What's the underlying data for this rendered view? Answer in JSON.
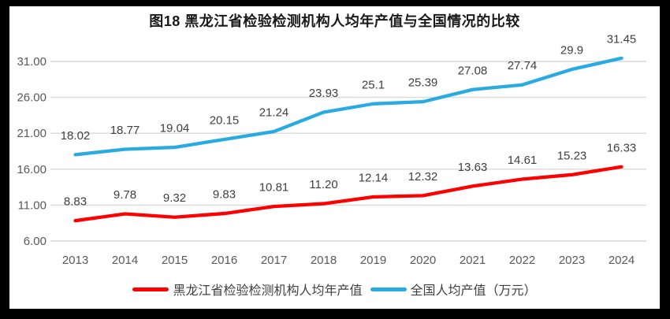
{
  "frame": {
    "border_color": "#000000",
    "background": "#ffffff"
  },
  "title": "图18 黑龙江省检验检测机构人均年产值与全国情况的比较",
  "chart_data": {
    "type": "line",
    "title": "图18 黑龙江省检验检测机构人均年产值与全国情况的比较",
    "xlabel": "",
    "ylabel": "",
    "categories": [
      "2013",
      "2014",
      "2015",
      "2016",
      "2017",
      "2018",
      "2019",
      "2020",
      "2021",
      "2022",
      "2023",
      "2024"
    ],
    "series": [
      {
        "name": "黑龙江省检验检测机构人均年产值",
        "color": "#FE0000",
        "values": [
          8.83,
          9.78,
          9.32,
          9.83,
          10.81,
          11.2,
          12.14,
          12.32,
          13.63,
          14.61,
          15.23,
          16.33
        ],
        "labels": [
          "8.83",
          "9.78",
          "9.32",
          "9.83",
          "10.81",
          "11.20",
          "12.14",
          "12.32",
          "13.63",
          "14.61",
          "15.23",
          "16.33"
        ]
      },
      {
        "name": "全国人均产值（万元）",
        "color": "#29ABE2",
        "values": [
          18.02,
          18.77,
          19.04,
          20.15,
          21.24,
          23.93,
          25.1,
          25.39,
          27.08,
          27.74,
          29.9,
          31.45
        ],
        "labels": [
          "18.02",
          "18.77",
          "19.04",
          "20.15",
          "21.24",
          "23.93",
          "25.1",
          "25.39",
          "27.08",
          "27.74",
          "29.9",
          "31.45"
        ]
      }
    ],
    "ylim": [
      6,
      31
    ],
    "y_ticks": [
      6,
      11,
      16,
      21,
      26,
      31
    ],
    "y_tick_labels": [
      "6.00",
      "11.00",
      "16.00",
      "21.00",
      "26.00",
      "31.00"
    ],
    "grid": true,
    "legend_position": "bottom",
    "colors": {
      "grid": "#D9D9D9",
      "tick_text": "#595959",
      "data_label": "#404040"
    }
  }
}
